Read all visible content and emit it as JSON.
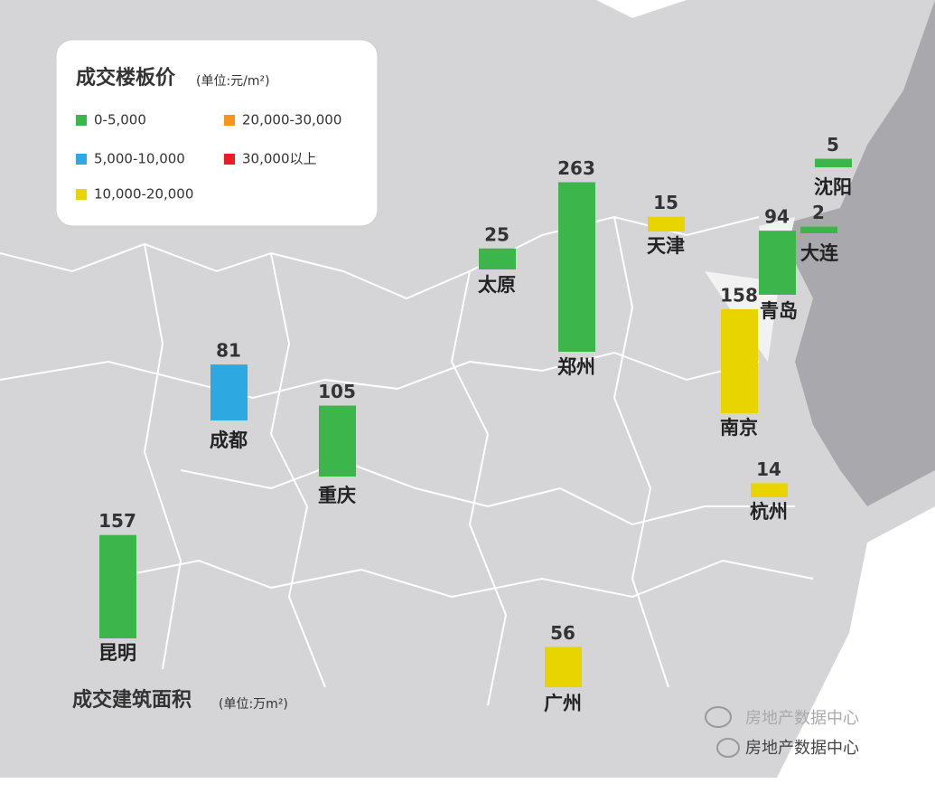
{
  "legend": {
    "title": "成交楼板价",
    "unit": "(单位:元/m²)",
    "items": [
      {
        "label": "0-5,000",
        "color": "#3cb54a"
      },
      {
        "label": "5,000-10,000",
        "color": "#2ea8e0"
      },
      {
        "label": "10,000-20,000",
        "color": "#e8d400"
      },
      {
        "label": "20,000-30,000",
        "color": "#f7941d"
      },
      {
        "label": "30,000以上",
        "color": "#ed1c24"
      }
    ]
  },
  "area_title": "成交建筑面积",
  "area_unit": "(单位:万m²)",
  "cities": [
    {
      "name": "沈阳",
      "value": 5,
      "color": "#3cb54a"
    },
    {
      "name": "大连",
      "value": 2,
      "color": "#3cb54a"
    },
    {
      "name": "青岛",
      "value": 94,
      "color": "#3cb54a"
    },
    {
      "name": "天津",
      "value": 15,
      "color": "#e8d400"
    },
    {
      "name": "郑州",
      "value": 263,
      "color": "#3cb54a"
    },
    {
      "name": "太原",
      "value": 25,
      "color": "#3cb54a"
    },
    {
      "name": "南京",
      "value": 158,
      "color": "#e8d400"
    },
    {
      "name": "杭州",
      "value": 14,
      "color": "#e8d400"
    },
    {
      "name": "成都",
      "value": 81,
      "color": "#2ea8e0"
    },
    {
      "name": "重庆",
      "value": 105,
      "color": "#3cb54a"
    },
    {
      "name": "昆明",
      "value": 157,
      "color": "#3cb54a"
    },
    {
      "name": "广州",
      "value": 56,
      "color": "#e8d400"
    }
  ],
  "watermark": "房地产数据中心"
}
